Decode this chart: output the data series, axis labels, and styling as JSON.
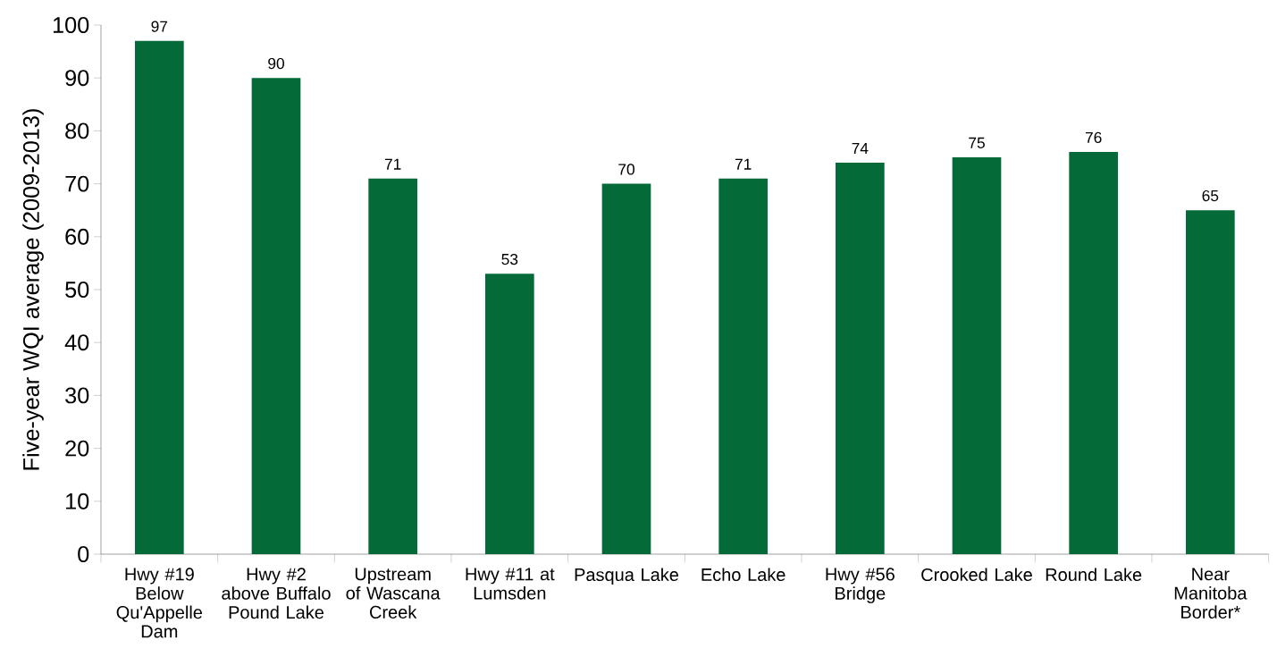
{
  "chart_data": {
    "type": "bar",
    "ylabel": "Five-year WQI average (2009-2013)",
    "categories": [
      "Hwy #19 Below Qu'Appelle Dam",
      "Hwy #2 above Buffalo Pound Lake",
      "Upstream of Wascana Creek",
      "Hwy #11 at Lumsden",
      "Pasqua Lake",
      "Echo Lake",
      "Hwy #56 Bridge",
      "Crooked Lake",
      "Round Lake",
      "Near Manitoba Border*"
    ],
    "values": [
      97,
      90,
      71,
      53,
      70,
      71,
      74,
      75,
      76,
      65
    ],
    "color": "#046b38",
    "ylim": [
      0,
      100
    ],
    "yticks": [
      0,
      10,
      20,
      30,
      40,
      50,
      60,
      70,
      80,
      90,
      100
    ],
    "data_labels": true,
    "grid": false
  }
}
